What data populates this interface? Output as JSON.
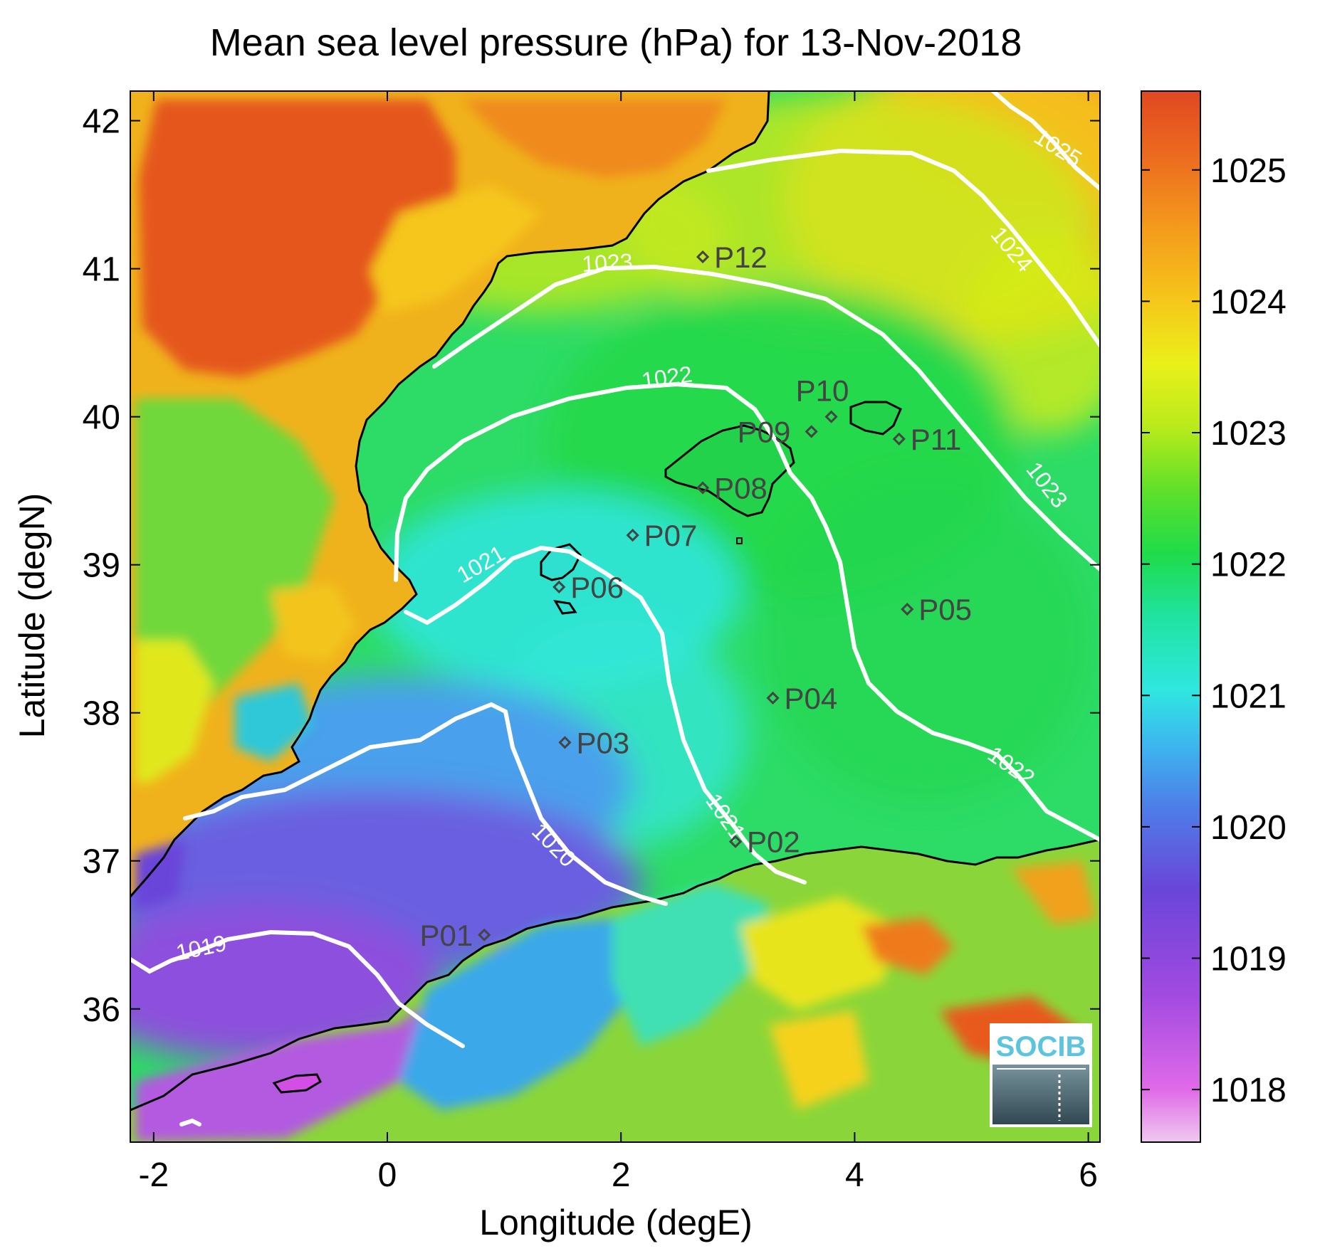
{
  "title": "Mean sea level pressure (hPa) for 13-Nov-2018",
  "x_axis": {
    "label": "Longitude (degE)",
    "ticks": [
      -2,
      0,
      2,
      4,
      6
    ],
    "range": [
      -2.2,
      6.1
    ]
  },
  "y_axis": {
    "label": "Latitude (degN)",
    "ticks": [
      36,
      37,
      38,
      39,
      40,
      41,
      42
    ],
    "range": [
      35.1,
      42.2
    ]
  },
  "colorbar": {
    "ticks": [
      1018,
      1019,
      1020,
      1021,
      1022,
      1023,
      1024,
      1025
    ],
    "range": [
      1017.6,
      1025.6
    ],
    "colors": [
      "#e6b3e8",
      "#c060e0",
      "#7a47d8",
      "#4f7fe6",
      "#3fc3ec",
      "#2ff0d2",
      "#22dc62",
      "#3cdf2e",
      "#d2f018",
      "#f5c21a",
      "#f27a1e",
      "#e04820"
    ]
  },
  "stations": [
    {
      "id": "P01",
      "lon": 0.83,
      "lat": 36.5
    },
    {
      "id": "P02",
      "lon": 2.98,
      "lat": 37.13
    },
    {
      "id": "P03",
      "lon": 1.52,
      "lat": 37.8
    },
    {
      "id": "P04",
      "lon": 3.3,
      "lat": 38.1
    },
    {
      "id": "P05",
      "lon": 4.45,
      "lat": 38.7
    },
    {
      "id": "P06",
      "lon": 1.47,
      "lat": 38.85
    },
    {
      "id": "P07",
      "lon": 2.1,
      "lat": 39.2
    },
    {
      "id": "P08",
      "lon": 2.7,
      "lat": 39.52
    },
    {
      "id": "P09",
      "lon": 3.63,
      "lat": 39.9
    },
    {
      "id": "P10",
      "lon": 3.8,
      "lat": 40.0
    },
    {
      "id": "P11",
      "lon": 4.38,
      "lat": 39.85
    },
    {
      "id": "P12",
      "lon": 2.7,
      "lat": 41.08
    }
  ],
  "contour_labels": [
    "1019",
    "1020",
    "1021",
    "1022",
    "1023",
    "1024",
    "1025"
  ],
  "logo_text": "SOCIB"
}
